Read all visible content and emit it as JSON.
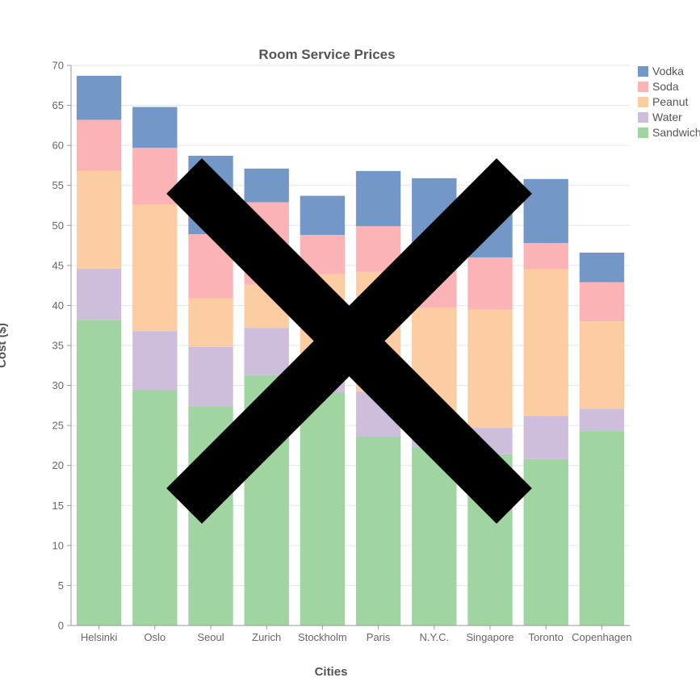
{
  "chart_data": {
    "type": "bar",
    "stacked": true,
    "title": "Room Service Prices",
    "xlabel": "Cities",
    "ylabel": "Cost ($)",
    "ylim": [
      0,
      70
    ],
    "yticks": [
      0,
      5,
      10,
      15,
      20,
      25,
      30,
      35,
      40,
      45,
      50,
      55,
      60,
      65,
      70
    ],
    "grid": true,
    "legend_position": "top-right",
    "categories": [
      "Helsinki",
      "Oslo",
      "Seoul",
      "Zurich",
      "Stockholm",
      "Paris",
      "N.Y.C.",
      "Singapore",
      "Toronto",
      "Copenhagen"
    ],
    "series": [
      {
        "name": "Sandwich",
        "color": "#a0d4a0",
        "values": [
          38.2,
          29.4,
          27.4,
          31.3,
          29.1,
          23.6,
          22.3,
          21.4,
          20.8,
          24.3
        ]
      },
      {
        "name": "Water",
        "color": "#cdbfdc",
        "values": [
          6.4,
          7.4,
          7.4,
          5.9,
          3.4,
          5.6,
          3.9,
          3.3,
          5.4,
          2.8
        ]
      },
      {
        "name": "Peanut",
        "color": "#fccda3",
        "values": [
          12.2,
          15.8,
          6.1,
          5.4,
          11.4,
          15.0,
          13.5,
          14.8,
          18.3,
          10.9
        ]
      },
      {
        "name": "Soda",
        "color": "#fbb3b6",
        "values": [
          6.4,
          7.1,
          8.0,
          10.3,
          4.9,
          5.7,
          5.8,
          6.5,
          3.3,
          4.9
        ]
      },
      {
        "name": "Vodka",
        "color": "#7398c8",
        "values": [
          5.5,
          5.1,
          9.8,
          4.2,
          4.9,
          6.9,
          10.4,
          7.8,
          8.0,
          3.7
        ]
      }
    ],
    "legend_order": [
      "Vodka",
      "Soda",
      "Peanut",
      "Water",
      "Sandwich"
    ],
    "legend_labels": {
      "Vodka": "Vodka",
      "Soda": "Soda",
      "Peanut": "Peanut",
      "Water": "Water",
      "Sandwich": "Sandwich"
    }
  },
  "overlay": {
    "icon": "x-cross-icon",
    "color": "#000000"
  }
}
